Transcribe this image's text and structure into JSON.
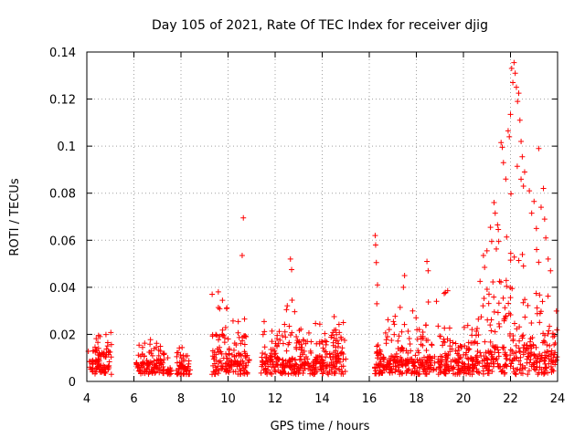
{
  "chart_data": {
    "type": "scatter",
    "title": "Day 105 of 2021, Rate Of TEC Index for receiver djig",
    "xlabel": "GPS time / hours",
    "ylabel": "ROTI / TECUs",
    "xlim": [
      4,
      24
    ],
    "ylim": [
      0,
      0.14
    ],
    "xticks": [
      4,
      6,
      8,
      10,
      12,
      14,
      16,
      18,
      20,
      22,
      24
    ],
    "xtick_labels": [
      "4",
      "6",
      "8",
      "10",
      "12",
      "14",
      "16",
      "18",
      "20",
      "22",
      "24"
    ],
    "yticks": [
      0,
      0.02,
      0.04,
      0.06,
      0.08,
      0.1,
      0.12,
      0.14
    ],
    "ytick_labels": [
      "0",
      "0.02",
      "0.04",
      "0.06",
      "0.08",
      "0.1",
      "0.12",
      "0.14"
    ],
    "grid": true,
    "marker": "+",
    "marker_color": "#ff0000",
    "segments": [
      {
        "start": 4.05,
        "end": 4.75,
        "base": 0.01,
        "peak": 0.02
      },
      {
        "start": 4.7,
        "end": 5.05,
        "base": 0.011,
        "peak": 0.021
      },
      {
        "start": 6.1,
        "end": 6.5,
        "base": 0.008,
        "peak": 0.017
      },
      {
        "start": 6.5,
        "end": 7.3,
        "base": 0.009,
        "peak": 0.02
      },
      {
        "start": 7.4,
        "end": 7.6,
        "base": 0.006,
        "peak": 0.012
      },
      {
        "start": 7.8,
        "end": 8.4,
        "base": 0.007,
        "peak": 0.015
      },
      {
        "start": 9.3,
        "end": 10.0,
        "base": 0.013,
        "peak": 0.041
      },
      {
        "start": 10.0,
        "end": 10.9,
        "base": 0.012,
        "peak": 0.027
      },
      {
        "start": 11.4,
        "end": 12.1,
        "base": 0.012,
        "peak": 0.028
      },
      {
        "start": 12.1,
        "end": 12.9,
        "base": 0.01,
        "peak": 0.033
      },
      {
        "start": 12.9,
        "end": 14.0,
        "base": 0.011,
        "peak": 0.025
      },
      {
        "start": 14.0,
        "end": 15.0,
        "base": 0.012,
        "peak": 0.028
      },
      {
        "start": 16.2,
        "end": 16.6,
        "base": 0.008,
        "peak": 0.018
      },
      {
        "start": 16.6,
        "end": 17.5,
        "base": 0.011,
        "peak": 0.034
      },
      {
        "start": 17.5,
        "end": 18.4,
        "base": 0.01,
        "peak": 0.036
      },
      {
        "start": 18.4,
        "end": 19.4,
        "base": 0.011,
        "peak": 0.04
      },
      {
        "start": 19.4,
        "end": 20.5,
        "base": 0.01,
        "peak": 0.024
      },
      {
        "start": 20.5,
        "end": 21.2,
        "base": 0.013,
        "peak": 0.045
      },
      {
        "start": 21.2,
        "end": 22.0,
        "base": 0.016,
        "peak": 0.07
      },
      {
        "start": 22.0,
        "end": 22.7,
        "base": 0.02,
        "peak": 0.095
      },
      {
        "start": 22.7,
        "end": 23.3,
        "base": 0.016,
        "peak": 0.06
      },
      {
        "start": 23.3,
        "end": 24.0,
        "base": 0.013,
        "peak": 0.04
      }
    ],
    "outliers": [
      [
        10.65,
        0.0695
      ],
      [
        10.6,
        0.0535
      ],
      [
        10.7,
        0.0265
      ],
      [
        12.65,
        0.052
      ],
      [
        12.7,
        0.0475
      ],
      [
        12.72,
        0.0345
      ],
      [
        16.25,
        0.062
      ],
      [
        16.27,
        0.058
      ],
      [
        16.3,
        0.0505
      ],
      [
        16.35,
        0.041
      ],
      [
        16.32,
        0.033
      ],
      [
        17.5,
        0.045
      ],
      [
        17.45,
        0.04
      ],
      [
        18.45,
        0.051
      ],
      [
        18.5,
        0.047
      ],
      [
        21.45,
        0.0665
      ],
      [
        21.5,
        0.0595
      ],
      [
        22.05,
        0.133
      ],
      [
        22.1,
        0.127
      ],
      [
        22.15,
        0.1355
      ],
      [
        22.2,
        0.131
      ],
      [
        22.25,
        0.125
      ],
      [
        22.3,
        0.119
      ],
      [
        22.35,
        0.1225
      ],
      [
        22.0,
        0.1135
      ],
      [
        21.9,
        0.1065
      ],
      [
        21.95,
        0.104
      ],
      [
        21.7,
        0.093
      ],
      [
        21.8,
        0.086
      ],
      [
        22.4,
        0.111
      ],
      [
        22.45,
        0.102
      ],
      [
        22.5,
        0.0955
      ],
      [
        22.6,
        0.089
      ],
      [
        22.8,
        0.081
      ],
      [
        23.2,
        0.099
      ],
      [
        23.0,
        0.0765
      ],
      [
        23.4,
        0.082
      ],
      [
        23.5,
        0.061
      ],
      [
        23.6,
        0.052
      ],
      [
        23.7,
        0.047
      ],
      [
        21.3,
        0.076
      ],
      [
        21.35,
        0.0715
      ],
      [
        22.55,
        0.083
      ],
      [
        21.6,
        0.1015
      ],
      [
        21.65,
        0.0995
      ],
      [
        22.9,
        0.0715
      ],
      [
        23.1,
        0.065
      ],
      [
        23.3,
        0.074
      ],
      [
        23.45,
        0.069
      ],
      [
        21.15,
        0.0655
      ],
      [
        21.2,
        0.0595
      ],
      [
        20.9,
        0.0485
      ],
      [
        21.0,
        0.0555
      ],
      [
        20.85,
        0.0535
      ]
    ]
  }
}
